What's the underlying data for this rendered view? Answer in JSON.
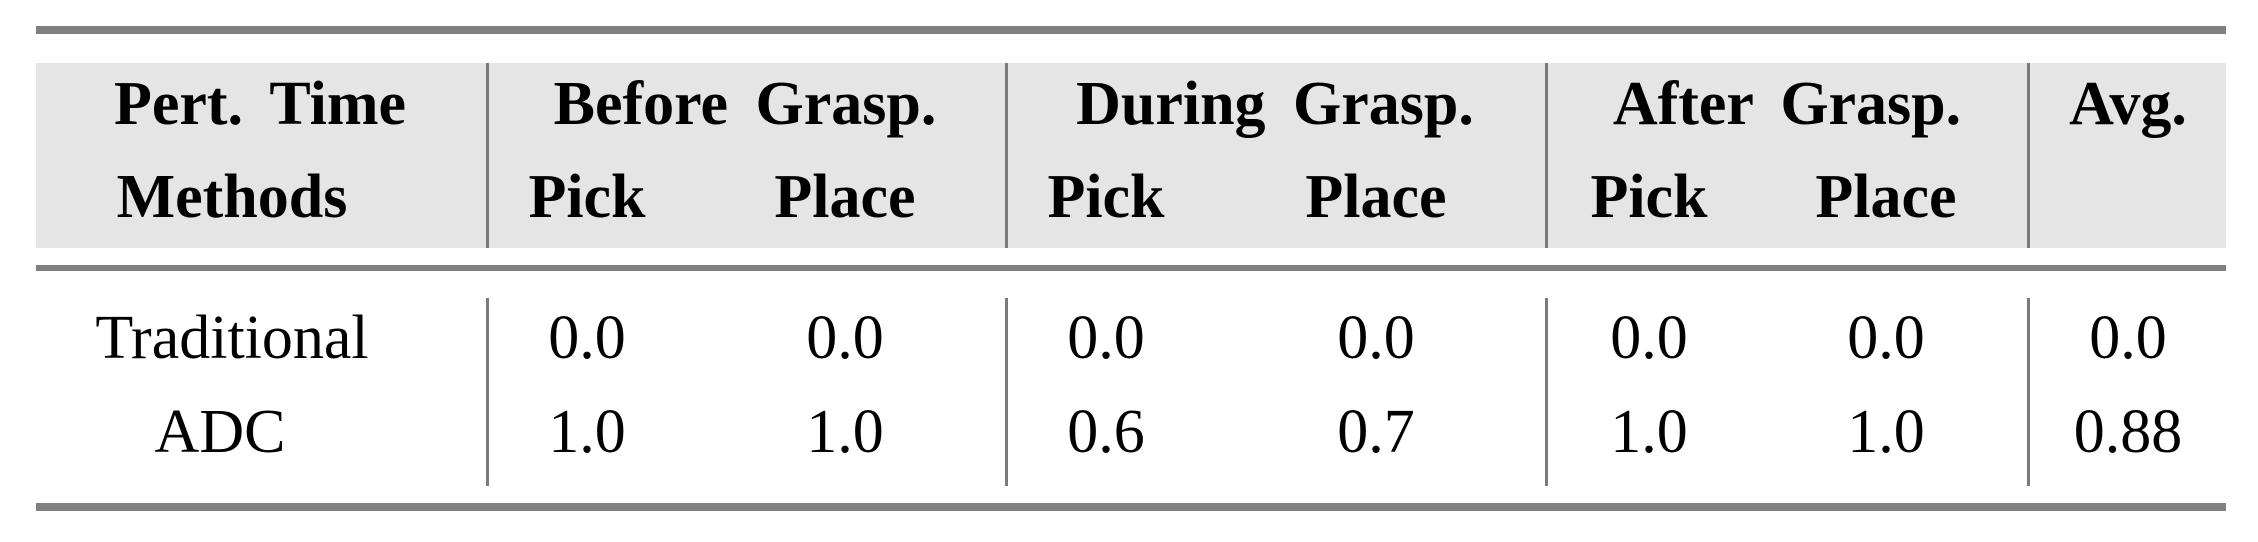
{
  "table": {
    "header_row1": [
      "Pert. Time",
      "Before Grasp.",
      "During Grasp.",
      "After Grasp.",
      "Avg."
    ],
    "header_row2": [
      "Methods",
      "Pick",
      "Place",
      "Pick",
      "Place",
      "Pick",
      "Place",
      ""
    ],
    "rows": [
      {
        "method": "Traditional",
        "values": [
          "0.0",
          "0.0",
          "0.0",
          "0.0",
          "0.0",
          "0.0",
          "0.0"
        ]
      },
      {
        "method": "ADC",
        "values": [
          "1.0",
          "1.0",
          "0.6",
          "0.7",
          "1.0",
          "1.0",
          "0.88"
        ]
      }
    ]
  }
}
